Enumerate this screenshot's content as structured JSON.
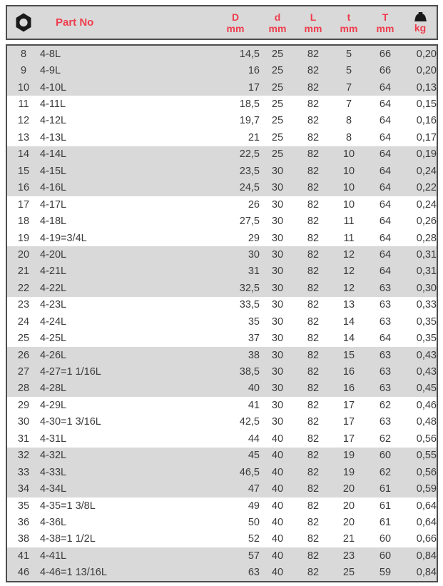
{
  "colors": {
    "accent_red": "#ee3d4d",
    "row_shade": "#d9d9d9",
    "border": "#4d4d4d",
    "text": "#3b3b3b"
  },
  "header": {
    "hex_icon": "hex-nut-icon",
    "part_no_label": "Part No",
    "columns": [
      {
        "label": "D",
        "unit": "mm"
      },
      {
        "label": "d",
        "unit": "mm"
      },
      {
        "label": "L",
        "unit": "mm"
      },
      {
        "label": "t",
        "unit": "mm"
      },
      {
        "label": "T",
        "unit": "mm"
      },
      {
        "label": "weight-icon",
        "unit": "kg"
      }
    ]
  },
  "table": {
    "rows": [
      {
        "size": "8",
        "part_no": "4-8L",
        "D": "14,5",
        "d": "25",
        "L": "82",
        "t": "5",
        "T": "66",
        "kg": "0,20"
      },
      {
        "size": "9",
        "part_no": "4-9L",
        "D": "16",
        "d": "25",
        "L": "82",
        "t": "5",
        "T": "66",
        "kg": "0,20"
      },
      {
        "size": "10",
        "part_no": "4-10L",
        "D": "17",
        "d": "25",
        "L": "82",
        "t": "7",
        "T": "64",
        "kg": "0,13"
      },
      {
        "size": "11",
        "part_no": "4-11L",
        "D": "18,5",
        "d": "25",
        "L": "82",
        "t": "7",
        "T": "64",
        "kg": "0,15"
      },
      {
        "size": "12",
        "part_no": "4-12L",
        "D": "19,7",
        "d": "25",
        "L": "82",
        "t": "8",
        "T": "64",
        "kg": "0,16"
      },
      {
        "size": "13",
        "part_no": "4-13L",
        "D": "21",
        "d": "25",
        "L": "82",
        "t": "8",
        "T": "64",
        "kg": "0,17"
      },
      {
        "size": "14",
        "part_no": "4-14L",
        "D": "22,5",
        "d": "25",
        "L": "82",
        "t": "10",
        "T": "64",
        "kg": "0,19"
      },
      {
        "size": "15",
        "part_no": "4-15L",
        "D": "23,5",
        "d": "30",
        "L": "82",
        "t": "10",
        "T": "64",
        "kg": "0,24"
      },
      {
        "size": "16",
        "part_no": "4-16L",
        "D": "24,5",
        "d": "30",
        "L": "82",
        "t": "10",
        "T": "64",
        "kg": "0,22"
      },
      {
        "size": "17",
        "part_no": "4-17L",
        "D": "26",
        "d": "30",
        "L": "82",
        "t": "10",
        "T": "64",
        "kg": "0,24"
      },
      {
        "size": "18",
        "part_no": "4-18L",
        "D": "27,5",
        "d": "30",
        "L": "82",
        "t": "11",
        "T": "64",
        "kg": "0,26"
      },
      {
        "size": "19",
        "part_no": "4-19=3/4L",
        "D": "29",
        "d": "30",
        "L": "82",
        "t": "11",
        "T": "64",
        "kg": "0,28"
      },
      {
        "size": "20",
        "part_no": "4-20L",
        "D": "30",
        "d": "30",
        "L": "82",
        "t": "12",
        "T": "64",
        "kg": "0,31"
      },
      {
        "size": "21",
        "part_no": "4-21L",
        "D": "31",
        "d": "30",
        "L": "82",
        "t": "12",
        "T": "64",
        "kg": "0,31"
      },
      {
        "size": "22",
        "part_no": "4-22L",
        "D": "32,5",
        "d": "30",
        "L": "82",
        "t": "12",
        "T": "63",
        "kg": "0,30"
      },
      {
        "size": "23",
        "part_no": "4-23L",
        "D": "33,5",
        "d": "30",
        "L": "82",
        "t": "13",
        "T": "63",
        "kg": "0,33"
      },
      {
        "size": "24",
        "part_no": "4-24L",
        "D": "35",
        "d": "30",
        "L": "82",
        "t": "14",
        "T": "63",
        "kg": "0,35"
      },
      {
        "size": "25",
        "part_no": "4-25L",
        "D": "37",
        "d": "30",
        "L": "82",
        "t": "14",
        "T": "64",
        "kg": "0,35"
      },
      {
        "size": "26",
        "part_no": "4-26L",
        "D": "38",
        "d": "30",
        "L": "82",
        "t": "15",
        "T": "63",
        "kg": "0,43"
      },
      {
        "size": "27",
        "part_no": "4-27=1 1/16L",
        "D": "38,5",
        "d": "30",
        "L": "82",
        "t": "16",
        "T": "63",
        "kg": "0,43"
      },
      {
        "size": "28",
        "part_no": "4-28L",
        "D": "40",
        "d": "30",
        "L": "82",
        "t": "16",
        "T": "63",
        "kg": "0,45"
      },
      {
        "size": "29",
        "part_no": "4-29L",
        "D": "41",
        "d": "30",
        "L": "82",
        "t": "17",
        "T": "62",
        "kg": "0,46"
      },
      {
        "size": "30",
        "part_no": "4-30=1 3/16L",
        "D": "42,5",
        "d": "30",
        "L": "82",
        "t": "17",
        "T": "63",
        "kg": "0,48"
      },
      {
        "size": "31",
        "part_no": "4-31L",
        "D": "44",
        "d": "40",
        "L": "82",
        "t": "17",
        "T": "62",
        "kg": "0,56"
      },
      {
        "size": "32",
        "part_no": "4-32L",
        "D": "45",
        "d": "40",
        "L": "82",
        "t": "19",
        "T": "60",
        "kg": "0,55"
      },
      {
        "size": "33",
        "part_no": "4-33L",
        "D": "46,5",
        "d": "40",
        "L": "82",
        "t": "19",
        "T": "62",
        "kg": "0,56"
      },
      {
        "size": "34",
        "part_no": "4-34L",
        "D": "47",
        "d": "40",
        "L": "82",
        "t": "20",
        "T": "61",
        "kg": "0,59"
      },
      {
        "size": "35",
        "part_no": "4-35=1 3/8L",
        "D": "49",
        "d": "40",
        "L": "82",
        "t": "20",
        "T": "61",
        "kg": "0,64"
      },
      {
        "size": "36",
        "part_no": "4-36L",
        "D": "50",
        "d": "40",
        "L": "82",
        "t": "20",
        "T": "61",
        "kg": "0,64"
      },
      {
        "size": "38",
        "part_no": "4-38=1 1/2L",
        "D": "52",
        "d": "40",
        "L": "82",
        "t": "21",
        "T": "60",
        "kg": "0,66"
      },
      {
        "size": "41",
        "part_no": "4-41L",
        "D": "57",
        "d": "40",
        "L": "82",
        "t": "23",
        "T": "60",
        "kg": "0,84"
      },
      {
        "size": "46",
        "part_no": "4-46=1 13/16L",
        "D": "63",
        "d": "40",
        "L": "82",
        "t": "25",
        "T": "59",
        "kg": "0,84"
      }
    ]
  }
}
